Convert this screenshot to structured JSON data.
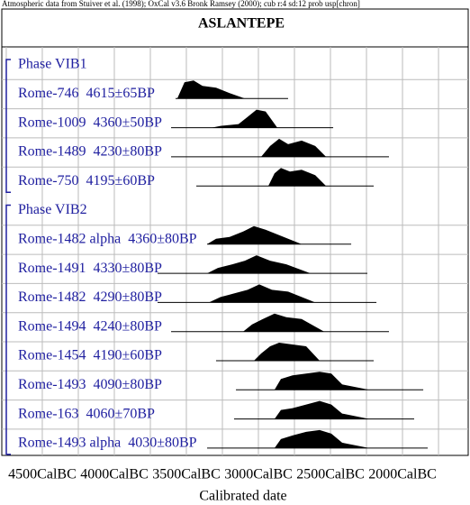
{
  "chart_data": {
    "type": "oxcal",
    "header": "Atmospheric data from Stuiver et al. (1998); OxCal v3.6 Bronk Ramsey (2000); cub r:4 sd:12 prob usp[chron]",
    "title": "ASLANTEPE",
    "xlabel": "Calibrated date",
    "xlim": [
      -4781,
      -1544
    ],
    "xticks": [
      {
        "value": -4500,
        "label": "4500CalBC"
      },
      {
        "value": -4000,
        "label": "4000CalBC"
      },
      {
        "value": -3500,
        "label": "3500CalBC"
      },
      {
        "value": -3000,
        "label": "3000CalBC"
      },
      {
        "value": -2500,
        "label": "2500CalBC"
      },
      {
        "value": -2000,
        "label": "2000CalBC"
      }
    ],
    "xgrid": [
      -4750,
      -4250,
      -3750,
      -3250,
      -2750,
      -2250,
      -1750
    ],
    "grid": true,
    "color": "#000000",
    "label_color": "#2020a0",
    "groups": [
      {
        "name": "Phase VIB1",
        "samples": [
          {
            "label": "Rome-746  4615±65BP",
            "range": [
              -3575,
              -2794
            ],
            "x": [
              -3563,
              -3513,
              -3450,
              -3388,
              -3294,
              -3200,
              -3094
            ],
            "density": [
              0,
              0.9,
              1,
              0.7,
              0.6,
              0.3,
              0
            ]
          },
          {
            "label": "Rome-1009  4360±50BP",
            "range": [
              -3606,
              -2481
            ],
            "x": [
              -3325,
              -3263,
              -3138,
              -3075,
              -3013,
              -2950,
              -2869
            ],
            "density": [
              0,
              0.1,
              0.2,
              0.6,
              1,
              0.9,
              0
            ]
          },
          {
            "label": "Rome-1489  4230±80BP",
            "range": [
              -3606,
              -2094
            ],
            "x": [
              -2981,
              -2919,
              -2856,
              -2794,
              -2700,
              -2606,
              -2531
            ],
            "density": [
              0,
              0.6,
              1,
              0.7,
              0.9,
              0.6,
              0
            ]
          },
          {
            "label": "Rome-750  4195±60BP",
            "range": [
              -3431,
              -2200
            ],
            "x": [
              -2931,
              -2888,
              -2844,
              -2781,
              -2700,
              -2606,
              -2531
            ],
            "density": [
              0,
              0.7,
              1,
              0.8,
              0.9,
              0.6,
              0
            ]
          }
        ]
      },
      {
        "name": "Phase VIB2",
        "samples": [
          {
            "label": "Rome-1482 alpha  4360±80BP",
            "range": [
              -3356,
              -2356
            ],
            "x": [
              -3356,
              -3294,
              -3200,
              -3106,
              -3031,
              -2950,
              -2856,
              -2700
            ],
            "density": [
              0,
              0.3,
              0.4,
              0.7,
              1,
              0.8,
              0.5,
              0
            ]
          },
          {
            "label": "Rome-1491  4330±80BP",
            "range": [
              -3700,
              -2244
            ],
            "x": [
              -3356,
              -3281,
              -3181,
              -3094,
              -3013,
              -2919,
              -2806,
              -2638
            ],
            "density": [
              0,
              0.3,
              0.5,
              0.7,
              1,
              0.7,
              0.5,
              0
            ]
          },
          {
            "label": "Rome-1482  4290±80BP",
            "range": [
              -3700,
              -2181
            ],
            "x": [
              -3344,
              -3263,
              -3169,
              -3075,
              -2994,
              -2906,
              -2794,
              -2606
            ],
            "density": [
              0,
              0.3,
              0.5,
              0.7,
              1,
              0.7,
              0.6,
              0
            ]
          },
          {
            "label": "Rome-1494  4240±80BP",
            "range": [
              -3606,
              -2094
            ],
            "x": [
              -3106,
              -3044,
              -2969,
              -2888,
              -2806,
              -2700,
              -2544
            ],
            "density": [
              0,
              0.4,
              0.7,
              1,
              0.8,
              0.7,
              0
            ]
          },
          {
            "label": "Rome-1454  4190±60BP",
            "range": [
              -3294,
              -2200
            ],
            "x": [
              -3031,
              -2981,
              -2919,
              -2856,
              -2763,
              -2669,
              -2575
            ],
            "density": [
              0,
              0.4,
              0.8,
              1,
              0.9,
              0.8,
              0
            ]
          },
          {
            "label": "Rome-1493  4090±80BP",
            "range": [
              -3156,
              -1856
            ],
            "x": [
              -2888,
              -2844,
              -2763,
              -2669,
              -2575,
              -2494,
              -2419,
              -2231
            ],
            "density": [
              0,
              0.6,
              0.8,
              0.9,
              1,
              0.9,
              0.3,
              0
            ]
          },
          {
            "label": "Rome-163  4060±70BP",
            "range": [
              -3169,
              -1919
            ],
            "x": [
              -2888,
              -2844,
              -2763,
              -2669,
              -2575,
              -2494,
              -2419,
              -2231
            ],
            "density": [
              0,
              0.5,
              0.6,
              0.8,
              1,
              0.8,
              0.3,
              0
            ]
          },
          {
            "label": "Rome-1493 alpha  4030±80BP",
            "range": [
              -3356,
              -1825
            ],
            "x": [
              -2888,
              -2844,
              -2763,
              -2669,
              -2575,
              -2494,
              -2419,
              -2231
            ],
            "density": [
              0,
              0.5,
              0.7,
              0.9,
              1,
              0.8,
              0.3,
              0
            ]
          }
        ]
      }
    ]
  }
}
